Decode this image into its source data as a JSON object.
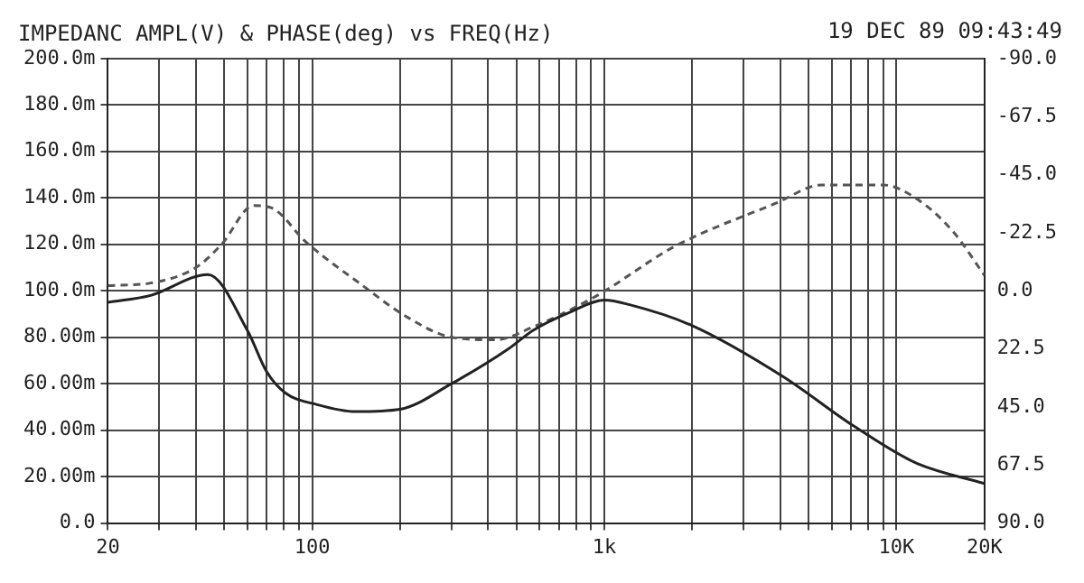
{
  "chart_data": {
    "type": "line",
    "title": "IMPEDANC AMPL(V) & PHASE(deg) vs FREQ(Hz)",
    "annotations": [
      "19 DEC 89 09:43:49"
    ],
    "log": "x",
    "grid": true,
    "legend": false,
    "marker": "none",
    "xlim": [
      20,
      20000
    ],
    "xticks": [
      {
        "value": 20,
        "label": "20"
      },
      {
        "value": 30,
        "label": null
      },
      {
        "value": 40,
        "label": null
      },
      {
        "value": 50,
        "label": null
      },
      {
        "value": 60,
        "label": null
      },
      {
        "value": 70,
        "label": null
      },
      {
        "value": 80,
        "label": null
      },
      {
        "value": 90,
        "label": null
      },
      {
        "value": 100,
        "label": "100"
      },
      {
        "value": 200,
        "label": null
      },
      {
        "value": 300,
        "label": null
      },
      {
        "value": 400,
        "label": null
      },
      {
        "value": 500,
        "label": null
      },
      {
        "value": 600,
        "label": null
      },
      {
        "value": 700,
        "label": null
      },
      {
        "value": 800,
        "label": null
      },
      {
        "value": 900,
        "label": null
      },
      {
        "value": 1000,
        "label": "1k"
      },
      {
        "value": 2000,
        "label": null
      },
      {
        "value": 3000,
        "label": null
      },
      {
        "value": 4000,
        "label": null
      },
      {
        "value": 5000,
        "label": null
      },
      {
        "value": 6000,
        "label": null
      },
      {
        "value": 7000,
        "label": null
      },
      {
        "value": 8000,
        "label": null
      },
      {
        "value": 9000,
        "label": null
      },
      {
        "value": 10000,
        "label": "10K"
      },
      {
        "value": 20000,
        "label": "20K"
      }
    ],
    "ylim": [
      0,
      200
    ],
    "yticks": [
      {
        "value": 0,
        "label": "0.0"
      },
      {
        "value": 20,
        "label": "20.00m"
      },
      {
        "value": 40,
        "label": "40.00m"
      },
      {
        "value": 60,
        "label": "60.00m"
      },
      {
        "value": 80,
        "label": "80.00m"
      },
      {
        "value": 100,
        "label": "100.0m"
      },
      {
        "value": 120,
        "label": "120.0m"
      },
      {
        "value": 140,
        "label": "140.0m"
      },
      {
        "value": 160,
        "label": "160.0m"
      },
      {
        "value": 180,
        "label": "180.0m"
      },
      {
        "value": 200,
        "label": "200.0m"
      }
    ],
    "y2lim": [
      90,
      -90
    ],
    "y2ticks": [
      {
        "value": -90,
        "label": "-90.0"
      },
      {
        "value": -67.5,
        "label": "-67.5"
      },
      {
        "value": -45,
        "label": "-45.0"
      },
      {
        "value": -22.5,
        "label": "-22.5"
      },
      {
        "value": 0,
        "label": "0.0"
      },
      {
        "value": 22.5,
        "label": "22.5"
      },
      {
        "value": 45,
        "label": "45.0"
      },
      {
        "value": 67.5,
        "label": "67.5"
      },
      {
        "value": 90,
        "label": "90.0"
      }
    ],
    "series": [
      {
        "color": "#222222",
        "line_style": "solid",
        "x": [
          20,
          28,
          44,
          60,
          70,
          81,
          104,
          141,
          200,
          300,
          470,
          571,
          770,
          1000,
          1220,
          2000,
          4100,
          7100,
          11600,
          20000
        ],
        "values": [
          95,
          98,
          107,
          83,
          65,
          56,
          51,
          48,
          49,
          60,
          75,
          83,
          91,
          96,
          94,
          85,
          63,
          42,
          26,
          17
        ]
      },
      {
        "color": "#555555",
        "line_style": "dashed",
        "axis": "y2",
        "x": [
          20,
          28,
          40,
          49,
          63,
          73,
          95,
          149,
          210,
          300,
          424,
          571,
          940,
          1730,
          3880,
          5550,
          9000,
          11600,
          15600,
          20000
        ],
        "values": [
          -2,
          -3,
          -9,
          -18,
          -33,
          -32,
          -19,
          -2,
          10,
          18,
          19,
          14,
          2,
          -17,
          -34,
          -41,
          -41,
          -36,
          -23,
          -6
        ]
      }
    ]
  }
}
